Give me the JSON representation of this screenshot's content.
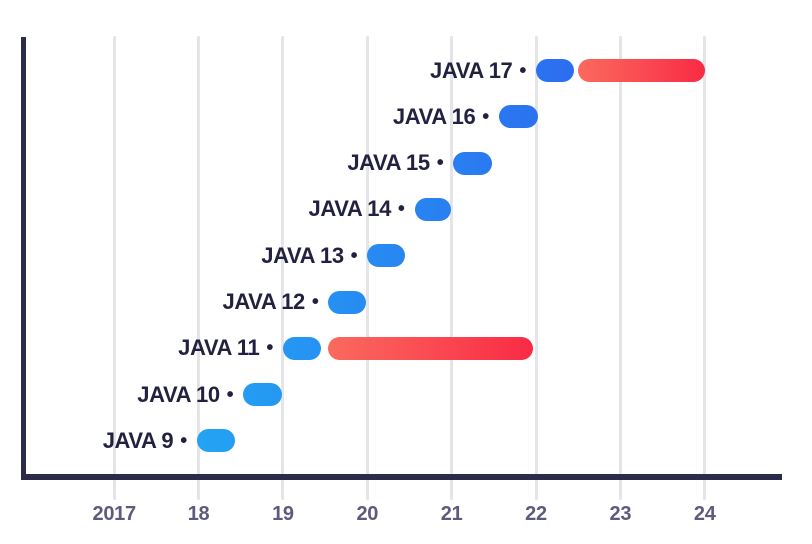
{
  "theme": {
    "background": "#FFFFFF",
    "axis_color": "#2D2B4A",
    "grid_color": "#E4E4E9",
    "row_label_color": "#222240",
    "tick_label_color": "#5D5B7D",
    "blue_scale": {
      "from": "#23A4F3",
      "to": "#2C6DF0",
      "year_from": 2017.98,
      "year_to": 2022.45
    },
    "red_from": "#FA6A5E",
    "red_to": "#F92B45"
  },
  "chart_data": {
    "type": "bar",
    "subtype": "horizontal-gantt-timeline",
    "label_bullet": "•",
    "grid": true,
    "legend": "none",
    "x_axis": {
      "ticks": [
        {
          "label": "2017",
          "year": 2017
        },
        {
          "label": "18",
          "year": 2018
        },
        {
          "label": "19",
          "year": 2019
        },
        {
          "label": "20",
          "year": 2020
        },
        {
          "label": "21",
          "year": 2021
        },
        {
          "label": "22",
          "year": 2022
        },
        {
          "label": "23",
          "year": 2023
        },
        {
          "label": "24",
          "year": 2024
        }
      ],
      "range_shown": [
        2017,
        2024
      ]
    },
    "rows": [
      {
        "label": "JAVA 17",
        "support": [
          2022.0,
          2022.45
        ],
        "extended": [
          2022.5,
          2024.0
        ]
      },
      {
        "label": "JAVA 16",
        "support": [
          2021.56,
          2022.02
        ]
      },
      {
        "label": "JAVA 15",
        "support": [
          2021.02,
          2021.48
        ]
      },
      {
        "label": "JAVA 14",
        "support": [
          2020.56,
          2020.99
        ]
      },
      {
        "label": "JAVA 13",
        "support": [
          2020.0,
          2020.45
        ]
      },
      {
        "label": "JAVA 12",
        "support": [
          2019.54,
          2019.99
        ]
      },
      {
        "label": "JAVA 11",
        "support": [
          2019.0,
          2019.45
        ],
        "extended": [
          2019.53,
          2021.97
        ]
      },
      {
        "label": "JAVA 10",
        "support": [
          2018.53,
          2018.99
        ]
      },
      {
        "label": "JAVA 9",
        "support": [
          2017.98,
          2018.43
        ]
      }
    ]
  }
}
